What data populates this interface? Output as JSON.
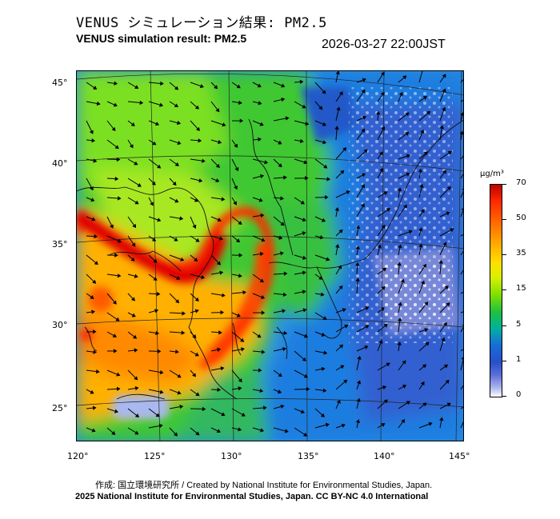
{
  "header": {
    "title_ja": "VENUS シミュレーション結果: PM2.5",
    "title_en": "VENUS simulation result: PM2.5",
    "timestamp": "2026-03-27 22:00JST"
  },
  "map": {
    "lon_labels": [
      "120°",
      "125°",
      "130°",
      "135°",
      "140°",
      "145°"
    ],
    "lat_labels": [
      "45°",
      "40°",
      "35°",
      "30°",
      "25°"
    ],
    "variable": "PM2.5 concentration with wind vectors"
  },
  "colorbar": {
    "unit": "μg/m³",
    "ticks": [
      "70",
      "50",
      "35",
      "15",
      "5",
      "1",
      "0"
    ]
  },
  "footer": {
    "credit_line": "作成: 国立環境研究所 / Created by National Institute for Environmental Studies, Japan.",
    "license_line": "2025 National Institute for Environmental Studies, Japan. CC BY-NC 4.0 International"
  }
}
